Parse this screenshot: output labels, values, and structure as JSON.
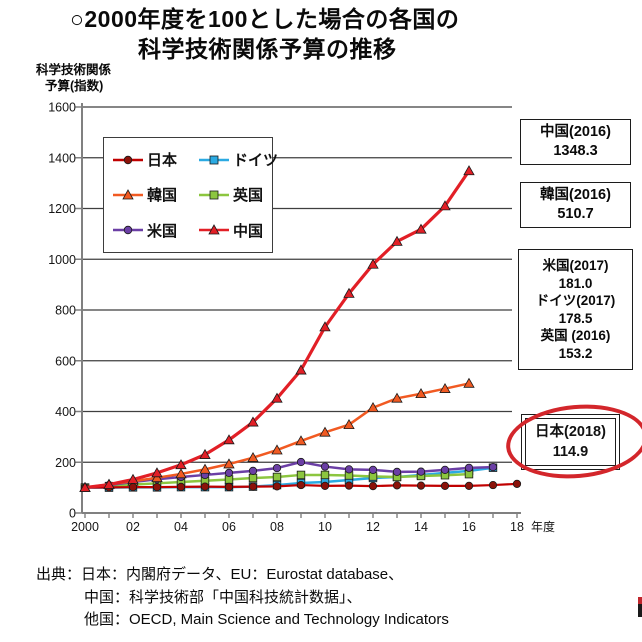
{
  "title": {
    "line1": "○2000年度を100とした場合の各国の",
    "line2": "科学技術関係予算の推移"
  },
  "y_axis_unit": {
    "line1": "科学技術関係",
    "line2": "予算(指数)"
  },
  "x_axis_unit": "年度",
  "chart_data": {
    "type": "line",
    "title": "2000年度を100とした場合の各国の科学技術関係予算の推移",
    "xlabel": "年度",
    "ylabel": "科学技術関係予算(指数)",
    "x_start_year": 2000,
    "x_tick_labels": [
      "2000",
      "02",
      "04",
      "06",
      "08",
      "10",
      "12",
      "14",
      "16",
      "18"
    ],
    "ylim": [
      0,
      1600
    ],
    "y_ticks": [
      0,
      200,
      400,
      600,
      800,
      1000,
      1200,
      1400,
      1600
    ],
    "grid": "horizontal",
    "legend_position": "upper-left-inside",
    "series": [
      {
        "key": "japan",
        "name": "日本",
        "color": "#c00000",
        "marker_color": "#8b1209",
        "marker": "circle",
        "values": [
          100,
          101,
          102,
          102,
          103,
          104,
          103,
          104,
          105,
          110,
          107,
          108,
          106,
          109,
          108,
          107,
          107,
          110,
          114.9
        ]
      },
      {
        "key": "germany",
        "name": "ドイツ",
        "color": "#2baae2",
        "marker": "square",
        "values": [
          100,
          100,
          101,
          101,
          102,
          102,
          102,
          104,
          110,
          118,
          122,
          130,
          138,
          142,
          150,
          158,
          166,
          178.5
        ]
      },
      {
        "key": "korea",
        "name": "韓国",
        "color": "#f15a22",
        "marker": "triangle",
        "values": [
          100,
          113,
          125,
          139,
          154,
          172,
          193,
          218,
          248,
          284,
          318,
          348,
          415,
          452,
          470,
          490,
          510.7
        ]
      },
      {
        "key": "uk",
        "name": "英国",
        "color": "#8cc63f",
        "marker": "square",
        "values": [
          100,
          106,
          112,
          117,
          122,
          127,
          132,
          138,
          142,
          150,
          150,
          148,
          144,
          142,
          146,
          149,
          153.2
        ]
      },
      {
        "key": "usa",
        "name": "米国",
        "color": "#6b3fa5",
        "marker": "circle",
        "values": [
          100,
          110,
          122,
          133,
          142,
          150,
          158,
          166,
          177,
          201,
          183,
          172,
          170,
          162,
          163,
          170,
          178,
          181
        ]
      },
      {
        "key": "china",
        "name": "中国",
        "color": "#e21f26",
        "marker": "triangle",
        "values": [
          100,
          112,
          132,
          158,
          190,
          230,
          288,
          358,
          452,
          563,
          733,
          865,
          980,
          1070,
          1118,
          1210,
          1348.3
        ]
      }
    ]
  },
  "annotations": [
    {
      "label": "中国(2016)",
      "value": "1348.3"
    },
    {
      "label": "韓国(2016)",
      "value": "510.7"
    },
    {
      "entries": [
        {
          "label": "米国(2017)",
          "value": "181.0"
        },
        {
          "label": "ドイツ(2017)",
          "value": "178.5"
        },
        {
          "label": "英国 (2016)",
          "value": "153.2"
        }
      ]
    },
    {
      "label": "日本(2018)",
      "value": "114.9",
      "highlight": "red-ellipse"
    }
  ],
  "source": {
    "line1": "出典：日本：内閣府データ、EU：Eurostat database、",
    "line2": "中国：科学技術部「中国科技統計数据」、",
    "line3": "他国：OECD, Main Science and Technology Indicators"
  },
  "colors": {
    "grid": "#3f3f3f",
    "axis": "#808080",
    "highlight_ellipse": "#d3262b"
  }
}
